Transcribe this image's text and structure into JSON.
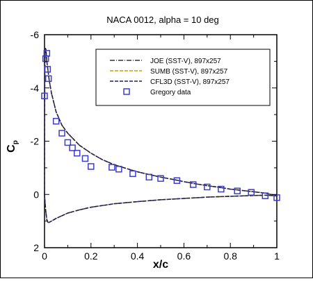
{
  "chart_data": {
    "type": "line",
    "title": "NACA 0012, alpha = 10 deg",
    "xlabel": "x/c",
    "ylabel": "C",
    "ylabel_sub": "p",
    "xlim": [
      0,
      1
    ],
    "ylim": [
      2,
      -6
    ],
    "y_inverted": true,
    "x_ticks": [
      0,
      0.2,
      0.4,
      0.6,
      0.8,
      1
    ],
    "x_tick_labels": [
      "0",
      "0.2",
      "0.4",
      "0.6",
      "0.8",
      "1"
    ],
    "y_ticks": [
      -6,
      -4,
      -2,
      0,
      2
    ],
    "y_tick_labels": [
      "-6",
      "-4",
      "-2",
      "0",
      "2"
    ],
    "grid": false,
    "legend_placement": "top-right",
    "series": [
      {
        "name": "JOE (SST-V), 897x257",
        "style": "dash-dot",
        "color": "#333333",
        "upper": [
          [
            0,
            0.0
          ],
          [
            0.001,
            -4.2
          ],
          [
            0.003,
            -5.5
          ],
          [
            0.006,
            -5.45
          ],
          [
            0.01,
            -5.0
          ],
          [
            0.02,
            -4.3
          ],
          [
            0.03,
            -3.8
          ],
          [
            0.05,
            -3.1
          ],
          [
            0.075,
            -2.6
          ],
          [
            0.1,
            -2.3
          ],
          [
            0.15,
            -1.85
          ],
          [
            0.2,
            -1.55
          ],
          [
            0.25,
            -1.3
          ],
          [
            0.3,
            -1.12
          ],
          [
            0.35,
            -0.98
          ],
          [
            0.4,
            -0.85
          ],
          [
            0.45,
            -0.75
          ],
          [
            0.5,
            -0.65
          ],
          [
            0.55,
            -0.57
          ],
          [
            0.6,
            -0.48
          ],
          [
            0.65,
            -0.4
          ],
          [
            0.7,
            -0.33
          ],
          [
            0.75,
            -0.27
          ],
          [
            0.8,
            -0.2
          ],
          [
            0.85,
            -0.15
          ],
          [
            0.9,
            -0.1
          ],
          [
            0.95,
            -0.05
          ],
          [
            1.0,
            0.05
          ]
        ],
        "lower": [
          [
            0,
            0.0
          ],
          [
            0.005,
            0.6
          ],
          [
            0.01,
            0.95
          ],
          [
            0.015,
            1.05
          ],
          [
            0.02,
            1.05
          ],
          [
            0.03,
            1.0
          ],
          [
            0.05,
            0.9
          ],
          [
            0.1,
            0.7
          ],
          [
            0.15,
            0.58
          ],
          [
            0.2,
            0.48
          ],
          [
            0.3,
            0.35
          ],
          [
            0.4,
            0.27
          ],
          [
            0.5,
            0.2
          ],
          [
            0.6,
            0.15
          ],
          [
            0.7,
            0.1
          ],
          [
            0.8,
            0.07
          ],
          [
            0.9,
            0.04
          ],
          [
            0.95,
            0.03
          ],
          [
            1.0,
            0.05
          ]
        ]
      },
      {
        "name": "SUMB (SST-V), 897x257",
        "style": "dashed",
        "color": "#c8a000",
        "upper": [
          [
            0,
            0.0
          ],
          [
            0.001,
            -4.2
          ],
          [
            0.003,
            -5.5
          ],
          [
            0.006,
            -5.45
          ],
          [
            0.01,
            -5.0
          ],
          [
            0.02,
            -4.3
          ],
          [
            0.03,
            -3.8
          ],
          [
            0.05,
            -3.1
          ],
          [
            0.075,
            -2.6
          ],
          [
            0.1,
            -2.3
          ],
          [
            0.15,
            -1.85
          ],
          [
            0.2,
            -1.55
          ],
          [
            0.25,
            -1.3
          ],
          [
            0.3,
            -1.12
          ],
          [
            0.35,
            -0.98
          ],
          [
            0.4,
            -0.85
          ],
          [
            0.45,
            -0.75
          ],
          [
            0.5,
            -0.65
          ],
          [
            0.55,
            -0.57
          ],
          [
            0.6,
            -0.48
          ],
          [
            0.65,
            -0.4
          ],
          [
            0.7,
            -0.33
          ],
          [
            0.75,
            -0.27
          ],
          [
            0.8,
            -0.2
          ],
          [
            0.85,
            -0.15
          ],
          [
            0.9,
            -0.1
          ],
          [
            0.95,
            -0.05
          ],
          [
            1.0,
            0.05
          ]
        ],
        "lower": [
          [
            0,
            0.0
          ],
          [
            0.005,
            0.6
          ],
          [
            0.01,
            0.95
          ],
          [
            0.015,
            1.05
          ],
          [
            0.02,
            1.05
          ],
          [
            0.03,
            1.0
          ],
          [
            0.05,
            0.9
          ],
          [
            0.1,
            0.7
          ],
          [
            0.15,
            0.58
          ],
          [
            0.2,
            0.48
          ],
          [
            0.3,
            0.35
          ],
          [
            0.4,
            0.27
          ],
          [
            0.5,
            0.2
          ],
          [
            0.6,
            0.15
          ],
          [
            0.7,
            0.1
          ],
          [
            0.8,
            0.07
          ],
          [
            0.9,
            0.04
          ],
          [
            0.95,
            0.03
          ],
          [
            1.0,
            0.05
          ]
        ]
      },
      {
        "name": "CFL3D (SST-V), 897x257",
        "style": "dashed",
        "color": "#1a1a5e",
        "upper": [
          [
            0,
            0.0
          ],
          [
            0.001,
            -4.2
          ],
          [
            0.003,
            -5.5
          ],
          [
            0.006,
            -5.45
          ],
          [
            0.01,
            -5.0
          ],
          [
            0.02,
            -4.3
          ],
          [
            0.03,
            -3.8
          ],
          [
            0.05,
            -3.1
          ],
          [
            0.075,
            -2.6
          ],
          [
            0.1,
            -2.3
          ],
          [
            0.15,
            -1.85
          ],
          [
            0.2,
            -1.55
          ],
          [
            0.25,
            -1.3
          ],
          [
            0.3,
            -1.12
          ],
          [
            0.35,
            -0.98
          ],
          [
            0.4,
            -0.85
          ],
          [
            0.45,
            -0.75
          ],
          [
            0.5,
            -0.65
          ],
          [
            0.55,
            -0.57
          ],
          [
            0.6,
            -0.48
          ],
          [
            0.65,
            -0.4
          ],
          [
            0.7,
            -0.33
          ],
          [
            0.75,
            -0.27
          ],
          [
            0.8,
            -0.2
          ],
          [
            0.85,
            -0.15
          ],
          [
            0.9,
            -0.1
          ],
          [
            0.95,
            -0.05
          ],
          [
            1.0,
            0.05
          ]
        ],
        "lower": [
          [
            0,
            0.0
          ],
          [
            0.005,
            0.6
          ],
          [
            0.01,
            0.95
          ],
          [
            0.015,
            1.05
          ],
          [
            0.02,
            1.05
          ],
          [
            0.03,
            1.0
          ],
          [
            0.05,
            0.9
          ],
          [
            0.1,
            0.7
          ],
          [
            0.15,
            0.58
          ],
          [
            0.2,
            0.48
          ],
          [
            0.3,
            0.35
          ],
          [
            0.4,
            0.27
          ],
          [
            0.5,
            0.2
          ],
          [
            0.6,
            0.15
          ],
          [
            0.7,
            0.1
          ],
          [
            0.8,
            0.07
          ],
          [
            0.9,
            0.04
          ],
          [
            0.95,
            0.03
          ],
          [
            1.0,
            0.05
          ]
        ]
      },
      {
        "name": "Gregory data",
        "style": "marker-square",
        "color": "#3b3bd0",
        "points": [
          [
            0.0,
            -3.7
          ],
          [
            0.005,
            -5.1
          ],
          [
            0.01,
            -5.3
          ],
          [
            0.013,
            -4.7
          ],
          [
            0.017,
            -4.35
          ],
          [
            0.05,
            -2.75
          ],
          [
            0.075,
            -2.3
          ],
          [
            0.1,
            -1.95
          ],
          [
            0.12,
            -1.75
          ],
          [
            0.14,
            -1.55
          ],
          [
            0.175,
            -1.35
          ],
          [
            0.2,
            -1.05
          ],
          [
            0.29,
            -1.02
          ],
          [
            0.32,
            -0.95
          ],
          [
            0.38,
            -0.78
          ],
          [
            0.45,
            -0.65
          ],
          [
            0.5,
            -0.6
          ],
          [
            0.57,
            -0.52
          ],
          [
            0.64,
            -0.37
          ],
          [
            0.7,
            -0.28
          ],
          [
            0.76,
            -0.2
          ],
          [
            0.83,
            -0.13
          ],
          [
            0.89,
            -0.08
          ],
          [
            0.95,
            0.05
          ],
          [
            1.0,
            0.12
          ]
        ]
      }
    ]
  }
}
